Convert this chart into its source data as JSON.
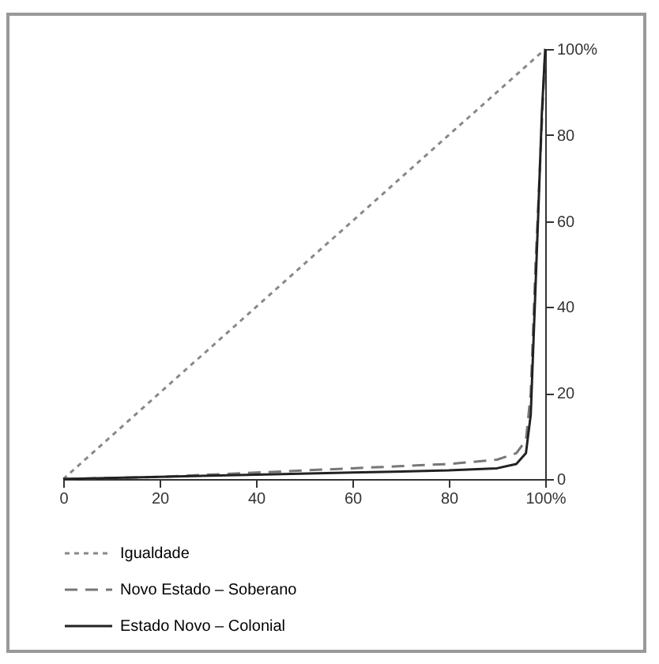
{
  "chart_data": {
    "type": "line",
    "xlim": [
      0,
      100
    ],
    "ylim": [
      0,
      100
    ],
    "xticks": [
      0,
      20,
      40,
      60,
      80,
      {
        "value": 100,
        "label": "100%"
      }
    ],
    "yticks": [
      0,
      20,
      40,
      60,
      80,
      {
        "value": 100,
        "label": "100%"
      }
    ],
    "grid": false,
    "legend": "bottom",
    "series": [
      {
        "name": "Igualdade",
        "color": "#888888",
        "line_style": "dotted",
        "x": [
          0,
          100
        ],
        "values": [
          0,
          100
        ]
      },
      {
        "name": "Novo Estado – Soberano",
        "color": "#777777",
        "line_style": "dashed",
        "x": [
          0,
          20,
          40,
          60,
          80,
          90,
          94,
          96,
          97,
          98,
          99,
          100
        ],
        "values": [
          0,
          0.5,
          1.5,
          2.5,
          3.5,
          4.5,
          6,
          9,
          20,
          50,
          75,
          100
        ]
      },
      {
        "name": "Estado Novo – Colonial",
        "color": "#222222",
        "line_style": "solid",
        "x": [
          0,
          20,
          40,
          60,
          80,
          90,
          94,
          96,
          97,
          97.5,
          98.5,
          99.3,
          100
        ],
        "values": [
          0,
          0.5,
          1,
          1.5,
          2,
          2.5,
          3.5,
          6,
          15,
          30,
          60,
          85,
          100
        ]
      }
    ]
  }
}
